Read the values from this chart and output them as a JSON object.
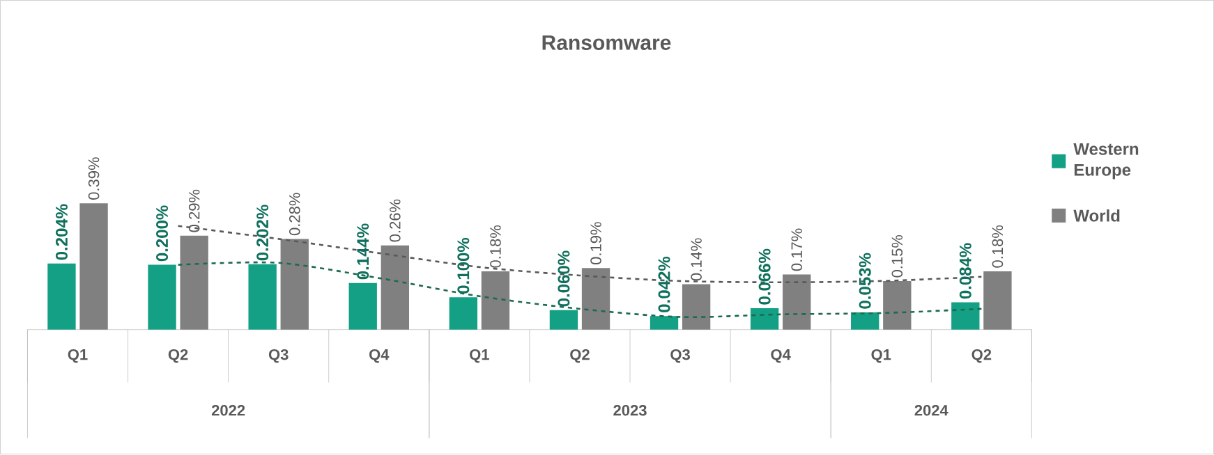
{
  "chart_data": {
    "type": "bar",
    "title": "Ransomware",
    "categories": [
      "Q1",
      "Q2",
      "Q3",
      "Q4",
      "Q1",
      "Q2",
      "Q3",
      "Q4",
      "Q1",
      "Q2"
    ],
    "annotations": [
      "2022",
      "2023",
      "2024"
    ],
    "legend": "right",
    "series": [
      {
        "name": "Western Europe",
        "color": "#14a085",
        "values": [
          0.204,
          0.2,
          0.202,
          0.144,
          0.1,
          0.06,
          0.042,
          0.066,
          0.053,
          0.084
        ],
        "value_labels": [
          "0.204%",
          "0.200%",
          "0.202%",
          "0.144%",
          "0.100%",
          "0.060%",
          "0.042%",
          "0.066%",
          "0.053%",
          "0.084%"
        ]
      },
      {
        "name": "World",
        "color": "#808080",
        "values": [
          0.39,
          0.29,
          0.28,
          0.26,
          0.18,
          0.19,
          0.14,
          0.17,
          0.15,
          0.18
        ],
        "value_labels": [
          "0.39%",
          "0.29%",
          "0.28%",
          "0.26%",
          "0.18%",
          "0.19%",
          "0.14%",
          "0.17%",
          "0.15%",
          "0.18%"
        ]
      },
      {
        "type": "line",
        "line_style": "dashed",
        "color": "#1d6b4e",
        "values": [
          null,
          0.2,
          0.206,
          0.159,
          0.103,
          0.064,
          0.039,
          0.047,
          0.051,
          0.064
        ]
      },
      {
        "type": "line",
        "line_style": "dashed",
        "color": "#595959",
        "values": [
          null,
          0.32,
          0.28,
          0.236,
          0.193,
          0.167,
          0.15,
          0.146,
          0.15,
          0.163
        ]
      }
    ]
  }
}
